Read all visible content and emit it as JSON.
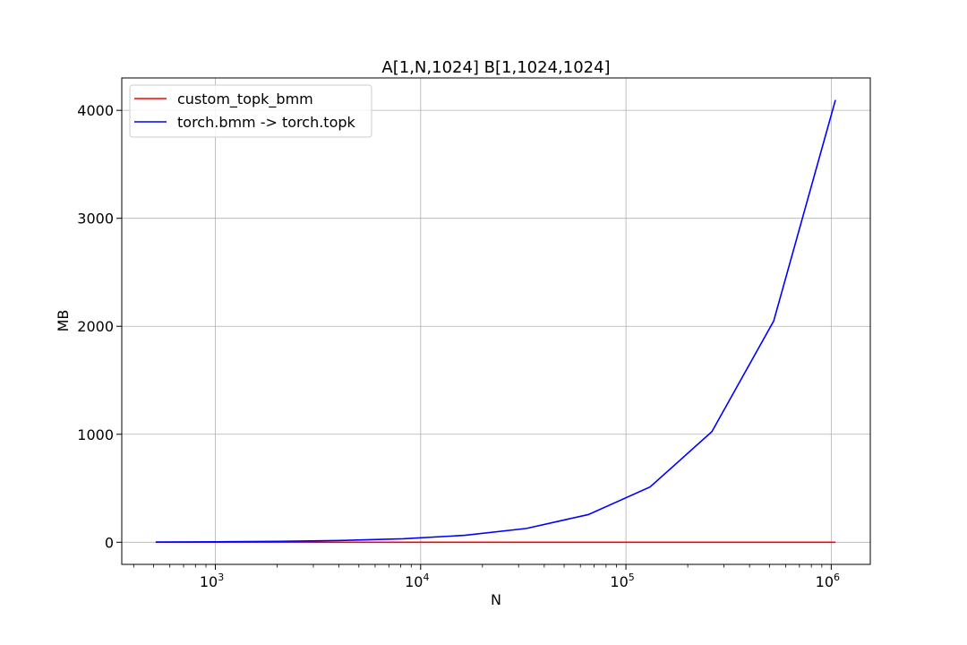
{
  "chart_data": {
    "type": "line",
    "title": "A[1,N,1024] B[1,1024,1024]",
    "xlabel": "N",
    "ylabel": "MB",
    "xscale": "log",
    "xlim": [
      350,
      1550000
    ],
    "ylim": [
      -205,
      4300
    ],
    "grid": true,
    "legend_position": "top-left",
    "x": [
      512,
      1024,
      2048,
      4096,
      8192,
      16384,
      32768,
      65536,
      131072,
      262144,
      524288,
      1048576
    ],
    "series": [
      {
        "name": "custom_topk_bmm",
        "color": "#ff0000",
        "values": [
          0,
          0,
          0,
          0,
          0,
          0,
          0,
          0,
          0,
          0,
          0,
          0
        ]
      },
      {
        "name": "torch.bmm -> torch.topk",
        "color": "#0000ff",
        "values": [
          2,
          4,
          8,
          16,
          32,
          64,
          128,
          256,
          512,
          1024,
          2048,
          4096
        ]
      }
    ],
    "xticks": [
      {
        "value": 1000,
        "base": "10",
        "exp": "3"
      },
      {
        "value": 10000,
        "base": "10",
        "exp": "4"
      },
      {
        "value": 100000,
        "base": "10",
        "exp": "5"
      },
      {
        "value": 1000000,
        "base": "10",
        "exp": "6"
      }
    ],
    "yticks": [
      {
        "value": 0,
        "label": "0"
      },
      {
        "value": 1000,
        "label": "1000"
      },
      {
        "value": 2000,
        "label": "2000"
      },
      {
        "value": 3000,
        "label": "3000"
      },
      {
        "value": 4000,
        "label": "4000"
      }
    ]
  }
}
